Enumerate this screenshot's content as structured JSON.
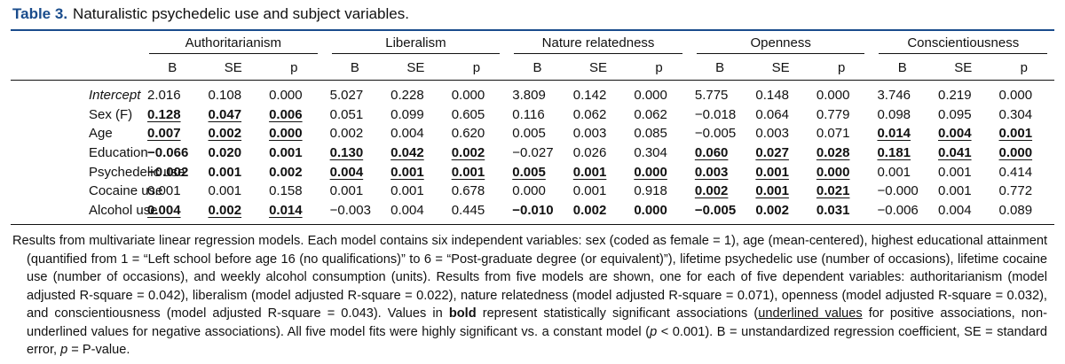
{
  "title": {
    "label": "Table 3.",
    "text": "Naturalistic psychedelic use and subject variables."
  },
  "table": {
    "groups": [
      "Authoritarianism",
      "Liberalism",
      "Nature relatedness",
      "Openness",
      "Conscientiousness"
    ],
    "subheaders": [
      "B",
      "SE",
      "p"
    ],
    "rows": [
      {
        "label": "Intercept",
        "italic": true,
        "cells": [
          "2.016",
          "0.108",
          "0.000",
          "5.027",
          "0.228",
          "0.000",
          "3.809",
          "0.142",
          "0.000",
          "5.775",
          "0.148",
          "0.000",
          "3.746",
          "0.219",
          "0.000"
        ],
        "bold": [
          false,
          false,
          false,
          false,
          false
        ],
        "underline": [
          false,
          false,
          false,
          false,
          false
        ]
      },
      {
        "label": "Sex (F)",
        "italic": false,
        "cells": [
          "0.128",
          "0.047",
          "0.006",
          "0.051",
          "0.099",
          "0.605",
          "0.116",
          "0.062",
          "0.062",
          "−0.018",
          "0.064",
          "0.779",
          "0.098",
          "0.095",
          "0.304"
        ],
        "bold": [
          true,
          false,
          false,
          false,
          false
        ],
        "underline": [
          true,
          false,
          false,
          false,
          false
        ]
      },
      {
        "label": "Age",
        "italic": false,
        "cells": [
          "0.007",
          "0.002",
          "0.000",
          "0.002",
          "0.004",
          "0.620",
          "0.005",
          "0.003",
          "0.085",
          "−0.005",
          "0.003",
          "0.071",
          "0.014",
          "0.004",
          "0.001"
        ],
        "bold": [
          true,
          false,
          false,
          false,
          true
        ],
        "underline": [
          true,
          false,
          false,
          false,
          true
        ]
      },
      {
        "label": "Education",
        "italic": false,
        "cells": [
          "−0.066",
          "0.020",
          "0.001",
          "0.130",
          "0.042",
          "0.002",
          "−0.027",
          "0.026",
          "0.304",
          "0.060",
          "0.027",
          "0.028",
          "0.181",
          "0.041",
          "0.000"
        ],
        "bold": [
          true,
          true,
          false,
          true,
          true
        ],
        "underline": [
          false,
          true,
          false,
          true,
          true
        ]
      },
      {
        "label": "Psychedelic use",
        "italic": false,
        "cells": [
          "−0.002",
          "0.001",
          "0.002",
          "0.004",
          "0.001",
          "0.001",
          "0.005",
          "0.001",
          "0.000",
          "0.003",
          "0.001",
          "0.000",
          "0.001",
          "0.001",
          "0.414"
        ],
        "bold": [
          true,
          true,
          true,
          true,
          false
        ],
        "underline": [
          false,
          true,
          true,
          true,
          false
        ]
      },
      {
        "label": "Cocaine use",
        "italic": false,
        "cells": [
          "0.001",
          "0.001",
          "0.158",
          "0.001",
          "0.001",
          "0.678",
          "0.000",
          "0.001",
          "0.918",
          "0.002",
          "0.001",
          "0.021",
          "−0.000",
          "0.001",
          "0.772"
        ],
        "bold": [
          false,
          false,
          false,
          true,
          false
        ],
        "underline": [
          false,
          false,
          false,
          true,
          false
        ]
      },
      {
        "label": "Alcohol use",
        "italic": false,
        "cells": [
          "0.004",
          "0.002",
          "0.014",
          "−0.003",
          "0.004",
          "0.445",
          "−0.010",
          "0.002",
          "0.000",
          "−0.005",
          "0.002",
          "0.031",
          "−0.006",
          "0.004",
          "0.089"
        ],
        "bold": [
          true,
          false,
          true,
          true,
          false
        ],
        "underline": [
          true,
          false,
          false,
          false,
          false
        ]
      }
    ]
  },
  "footnote": [
    {
      "text": "Results from multivariate linear regression models. Each model contains six independent variables: sex (coded as female = 1), age (mean-centered), highest educational attainment (quantified from 1 = “Left school before age 16 (no qualifications)” to 6 = “Post-graduate degree (or equivalent)”), lifetime psychedelic use (number of occasions), lifetime cocaine use (number of occasions), and weekly alcohol consumption (units). Results from five models are shown, one for each of five dependent variables: authoritarianism (model adjusted R-square = 0.042), liberalism (model adjusted R-square = 0.022), nature relatedness (model adjusted R-square = 0.071), openness (model adjusted R-square = 0.032), and conscientiousness (model adjusted R-square = 0.043). Values in "
    },
    {
      "text": "bold",
      "bold": true
    },
    {
      "text": " represent statistically significant associations ("
    },
    {
      "text": "underlined values",
      "underline": true
    },
    {
      "text": " for positive associations, non-underlined values for negative associations). All five model fits were highly significant vs. a constant model ("
    },
    {
      "text": "p",
      "italic": true
    },
    {
      "text": " < 0.001). B = unstandardized regression coefficient, SE = standard error, "
    },
    {
      "text": "p",
      "italic": true
    },
    {
      "text": " = P-value."
    }
  ]
}
